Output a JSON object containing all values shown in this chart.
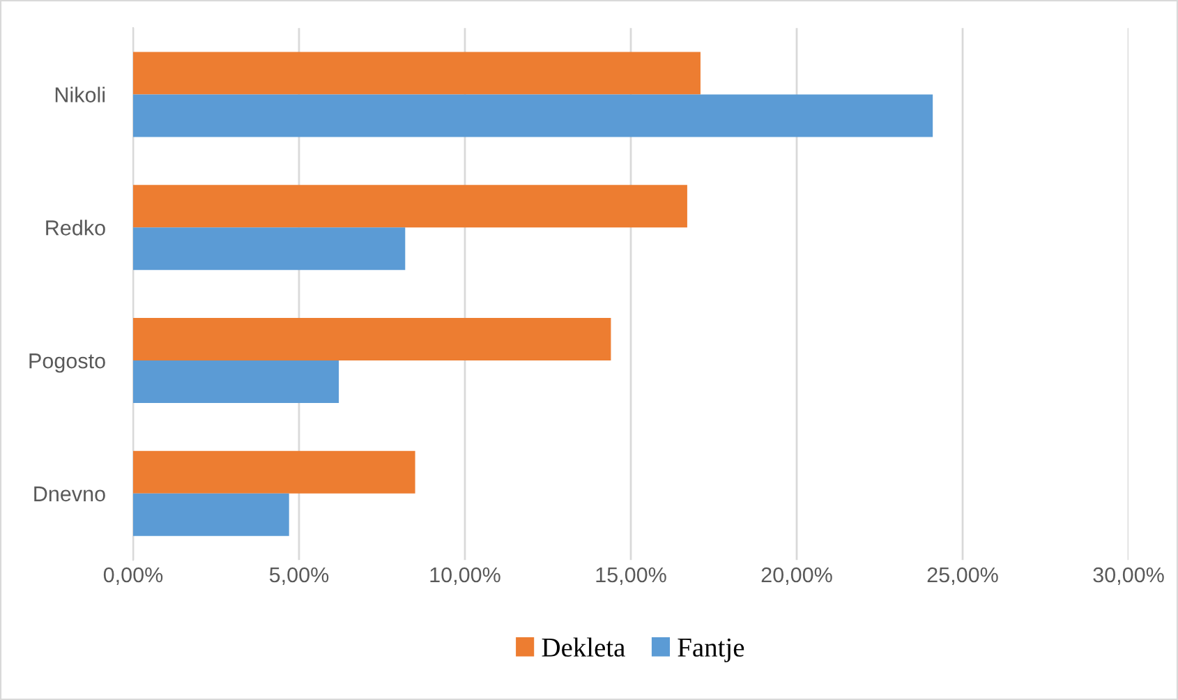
{
  "chart_data": {
    "type": "bar",
    "orientation": "horizontal",
    "categories": [
      "Nikoli",
      "Redko",
      "Pogosto",
      "Dnevno"
    ],
    "series": [
      {
        "name": "Dekleta",
        "color": "#ed7d31",
        "values": [
          17.1,
          16.7,
          14.4,
          8.5
        ]
      },
      {
        "name": "Fantje",
        "color": "#5b9bd5",
        "values": [
          24.1,
          8.2,
          6.2,
          4.7
        ]
      }
    ],
    "xlim": [
      0,
      30
    ],
    "xticks": [
      {
        "value": 0,
        "label": "0,00%"
      },
      {
        "value": 5,
        "label": "5,00%"
      },
      {
        "value": 10,
        "label": "10,00%"
      },
      {
        "value": 15,
        "label": "15,00%"
      },
      {
        "value": 20,
        "label": "20,00%"
      },
      {
        "value": 25,
        "label": "25,00%"
      },
      {
        "value": 30,
        "label": "30,00%"
      }
    ],
    "grid": "x",
    "legend": "bottom"
  }
}
